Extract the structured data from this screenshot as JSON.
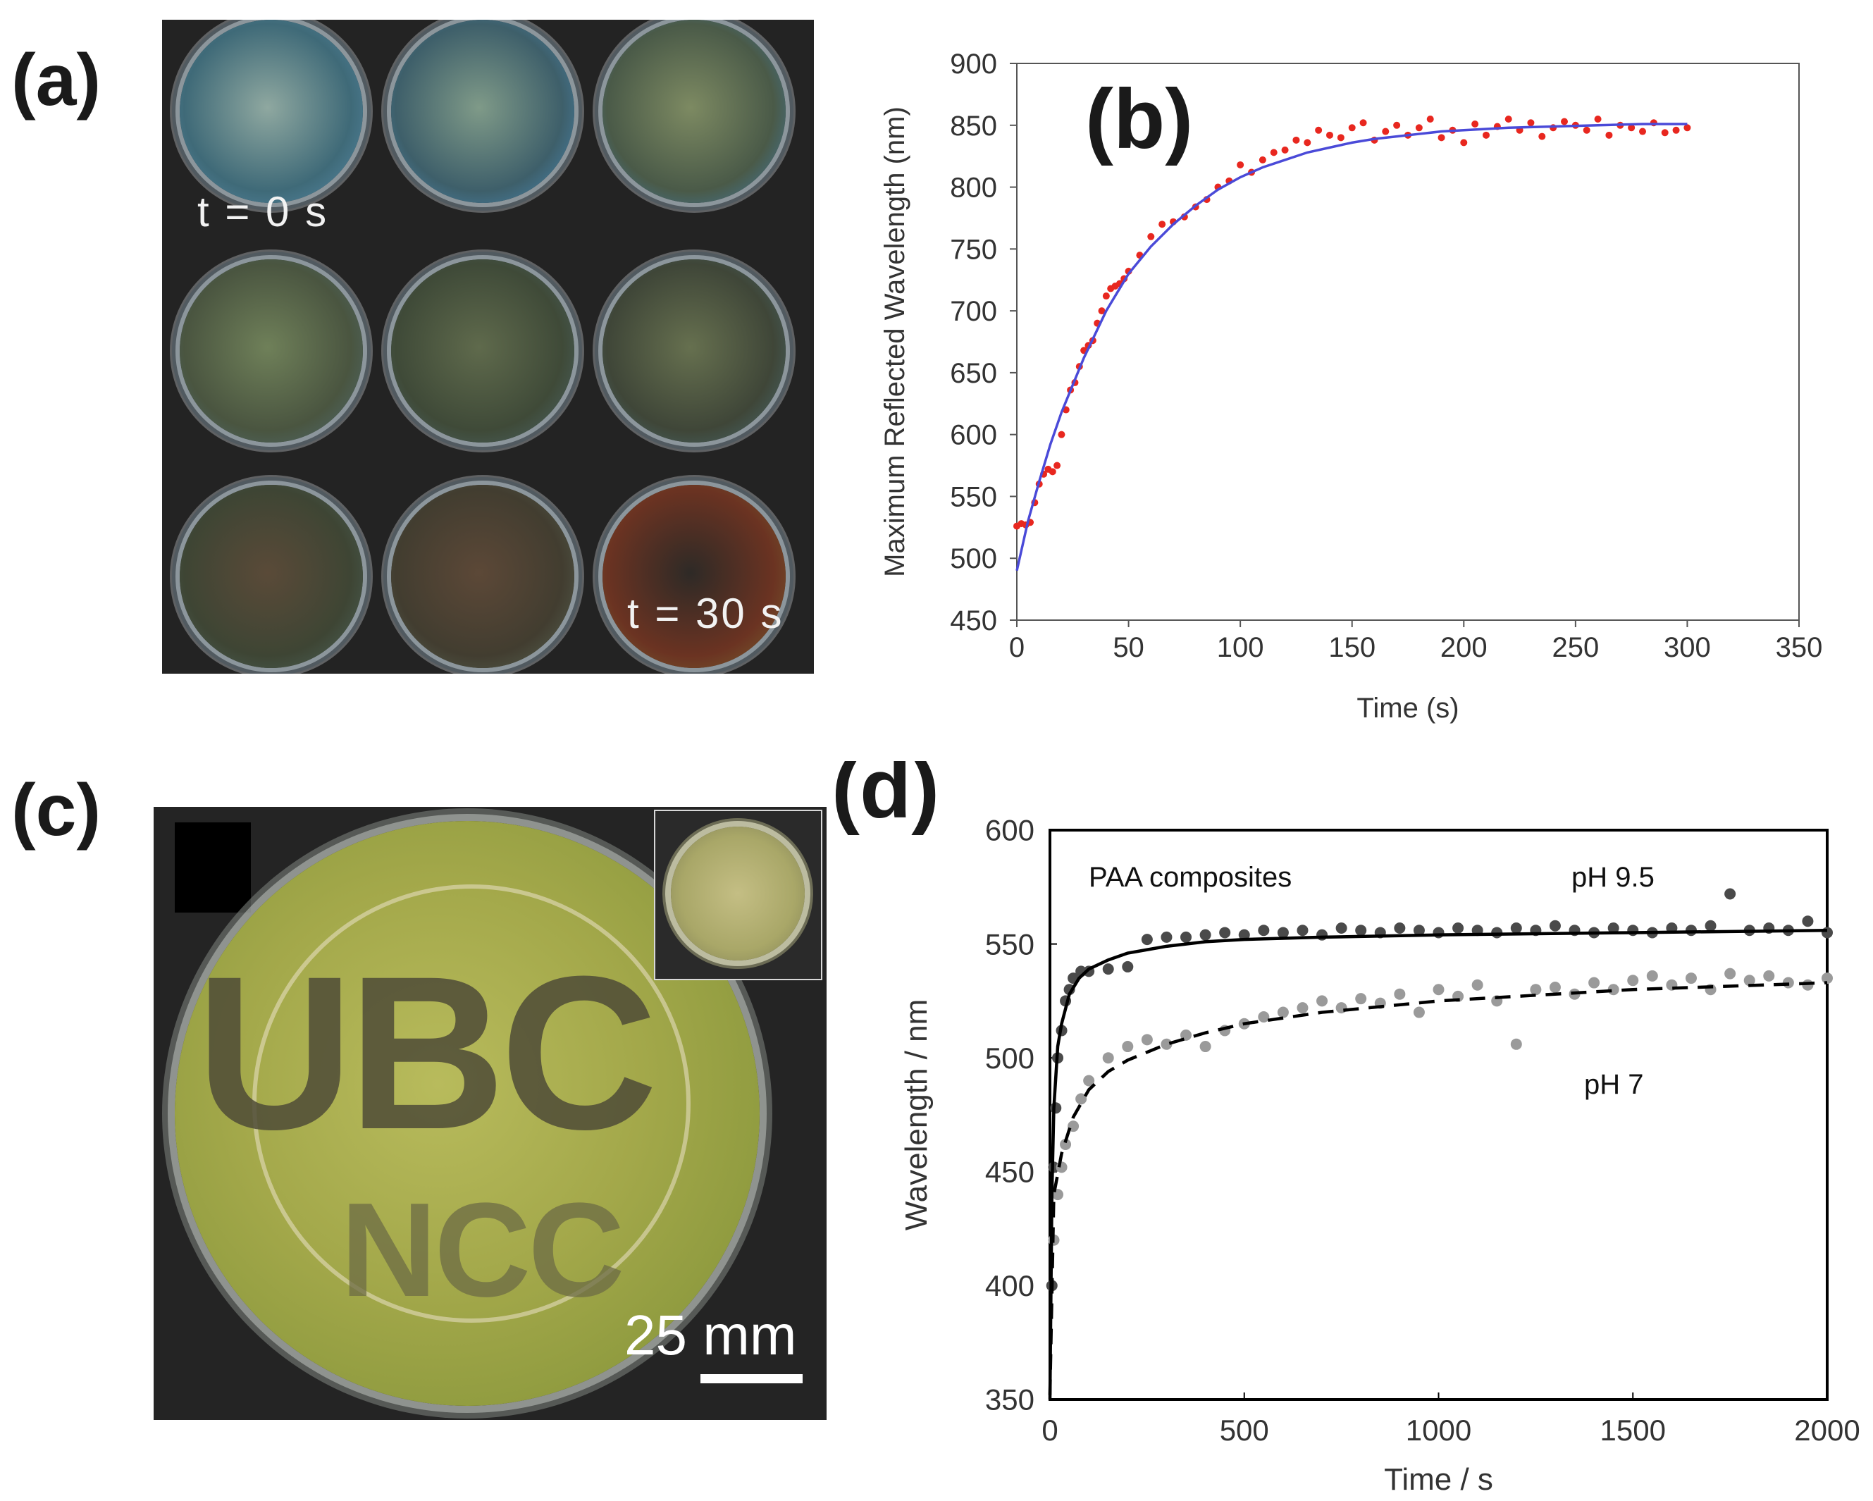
{
  "figure": {
    "panel_a": {
      "letter": "(a)",
      "label_start": "t = 0 s",
      "label_end": "t = 30 s",
      "dish_colors": [
        {
          "center": "#8fa8a0",
          "mid": "#3f6a78",
          "edge": "#5b8fb0"
        },
        {
          "center": "#7f9a88",
          "mid": "#3e5f6a",
          "edge": "#4a8fc0"
        },
        {
          "center": "#7d8a62",
          "mid": "#4a5a48",
          "edge": "#3f7fb2"
        },
        {
          "center": "#6f8059",
          "mid": "#4a5540",
          "edge": "#4f6f78"
        },
        {
          "center": "#5f6a4c",
          "mid": "#3f4a38",
          "edge": "#4e6a70"
        },
        {
          "center": "#66704f",
          "mid": "#3f4638",
          "edge": "#4a7078"
        },
        {
          "center": "#5a4a38",
          "mid": "#3e4534",
          "edge": "#4f6a62"
        },
        {
          "center": "#5c4837",
          "mid": "#423d30",
          "edge": "#5a6a58"
        },
        {
          "center": "#2e2a26",
          "mid": "#6b3322",
          "edge": "#7a6a30"
        }
      ]
    },
    "panel_c": {
      "letter": "(c)",
      "text_line1": "UBC",
      "text_line2": "NCC",
      "scale_bar": "25 mm",
      "film_color": "#a9ae4e",
      "letters_color": "#4f4c37"
    }
  },
  "chart_data": [
    {
      "panel": "(b)",
      "type": "scatter",
      "title": "",
      "xlabel": "Time (s)",
      "ylabel": "Maximum Reflected Wavelength (nm)",
      "xlim": [
        0,
        350
      ],
      "ylim": [
        450,
        900
      ],
      "xticks": [
        0,
        50,
        100,
        150,
        200,
        250,
        300,
        350
      ],
      "yticks": [
        450,
        500,
        550,
        600,
        650,
        700,
        750,
        800,
        850,
        900
      ],
      "grid": false,
      "series": [
        {
          "name": "measured",
          "kind": "points",
          "color": "#e8271f",
          "x": [
            0,
            2,
            4,
            6,
            8,
            10,
            12,
            14,
            16,
            18,
            20,
            22,
            24,
            26,
            28,
            30,
            32,
            34,
            36,
            38,
            40,
            42,
            44,
            46,
            48,
            50,
            55,
            60,
            65,
            70,
            75,
            80,
            85,
            90,
            95,
            100,
            105,
            110,
            115,
            120,
            125,
            130,
            135,
            140,
            145,
            150,
            155,
            160,
            165,
            170,
            175,
            180,
            185,
            190,
            195,
            200,
            205,
            210,
            215,
            220,
            225,
            230,
            235,
            240,
            245,
            250,
            255,
            260,
            265,
            270,
            275,
            280,
            285,
            290,
            295,
            300
          ],
          "y": [
            526,
            528,
            527,
            529,
            545,
            560,
            568,
            572,
            570,
            575,
            600,
            620,
            636,
            642,
            655,
            668,
            672,
            676,
            690,
            700,
            712,
            718,
            720,
            722,
            726,
            732,
            745,
            760,
            770,
            772,
            776,
            784,
            790,
            800,
            805,
            818,
            812,
            822,
            828,
            830,
            838,
            836,
            846,
            842,
            840,
            848,
            852,
            838,
            845,
            850,
            842,
            848,
            855,
            840,
            846,
            836,
            851,
            842,
            849,
            855,
            846,
            852,
            841,
            848,
            853,
            850,
            846,
            855,
            842,
            850,
            848,
            845,
            852,
            844,
            846,
            848
          ]
        },
        {
          "name": "fit",
          "kind": "curve",
          "color": "#4a4ad8",
          "x": [
            0,
            5,
            10,
            15,
            20,
            25,
            30,
            40,
            50,
            60,
            70,
            80,
            90,
            100,
            110,
            120,
            130,
            140,
            150,
            160,
            170,
            180,
            190,
            200,
            220,
            240,
            260,
            280,
            300
          ],
          "y": [
            490,
            530,
            562,
            592,
            618,
            640,
            662,
            700,
            730,
            752,
            770,
            785,
            798,
            808,
            816,
            822,
            828,
            832,
            836,
            839,
            841,
            843,
            845,
            846,
            848,
            849,
            850,
            851,
            851
          ]
        }
      ]
    },
    {
      "panel": "(d)",
      "type": "scatter",
      "title": "",
      "xlabel": "Time / s",
      "ylabel": "Wavelength / nm",
      "xlim": [
        0,
        2000
      ],
      "ylim": [
        350,
        600
      ],
      "xticks": [
        0,
        500,
        1000,
        1500,
        2000
      ],
      "yticks": [
        350,
        400,
        450,
        500,
        550,
        600
      ],
      "grid": false,
      "annotations": {
        "legend_title": "PAA composites",
        "label_high": "pH 9.5",
        "label_low": "pH 7"
      },
      "series": [
        {
          "name": "pH 9.5",
          "kind": "points",
          "color": "#4a4a4a",
          "x": [
            5,
            10,
            15,
            20,
            30,
            40,
            50,
            60,
            80,
            100,
            150,
            200,
            250,
            300,
            350,
            400,
            450,
            500,
            550,
            600,
            650,
            700,
            750,
            800,
            850,
            900,
            950,
            1000,
            1050,
            1100,
            1150,
            1200,
            1250,
            1300,
            1350,
            1400,
            1450,
            1500,
            1550,
            1600,
            1650,
            1700,
            1750,
            1800,
            1850,
            1900,
            1950,
            2000
          ],
          "y": [
            400,
            452,
            478,
            500,
            512,
            525,
            530,
            535,
            538,
            538,
            539,
            540,
            552,
            553,
            553,
            554,
            555,
            554,
            556,
            555,
            556,
            554,
            557,
            556,
            555,
            557,
            556,
            555,
            557,
            556,
            555,
            557,
            556,
            558,
            556,
            555,
            557,
            556,
            555,
            557,
            556,
            558,
            572,
            556,
            557,
            556,
            560,
            555
          ]
        },
        {
          "name": "pH 7",
          "kind": "points",
          "color": "#9a9a9a",
          "x": [
            10,
            20,
            30,
            40,
            60,
            80,
            100,
            150,
            200,
            250,
            300,
            350,
            400,
            450,
            500,
            550,
            600,
            650,
            700,
            750,
            800,
            850,
            900,
            950,
            1000,
            1050,
            1100,
            1150,
            1200,
            1250,
            1300,
            1350,
            1400,
            1450,
            1500,
            1550,
            1600,
            1650,
            1700,
            1750,
            1800,
            1850,
            1900,
            1950,
            2000
          ],
          "y": [
            420,
            440,
            452,
            462,
            470,
            482,
            490,
            500,
            505,
            508,
            506,
            510,
            505,
            512,
            515,
            518,
            520,
            522,
            525,
            522,
            526,
            524,
            528,
            520,
            530,
            527,
            532,
            525,
            506,
            530,
            531,
            528,
            533,
            530,
            534,
            536,
            532,
            535,
            530,
            537,
            534,
            536,
            533,
            532,
            535
          ]
        },
        {
          "name": "pH 9.5 fit",
          "kind": "curve",
          "color": "#000000",
          "style": "solid",
          "x": [
            0,
            5,
            10,
            20,
            30,
            50,
            75,
            100,
            150,
            200,
            300,
            400,
            500,
            700,
            1000,
            1500,
            2000
          ],
          "y": [
            350,
            440,
            478,
            505,
            515,
            528,
            535,
            539,
            543,
            546,
            549,
            551,
            552,
            553,
            554,
            555,
            556
          ]
        },
        {
          "name": "pH 7 fit",
          "kind": "curve",
          "color": "#000000",
          "style": "dashed",
          "x": [
            0,
            10,
            30,
            60,
            100,
            150,
            200,
            300,
            400,
            500,
            700,
            1000,
            1500,
            2000
          ],
          "y": [
            352,
            440,
            458,
            474,
            486,
            494,
            499,
            506,
            511,
            515,
            520,
            525,
            530,
            533
          ]
        }
      ]
    }
  ]
}
